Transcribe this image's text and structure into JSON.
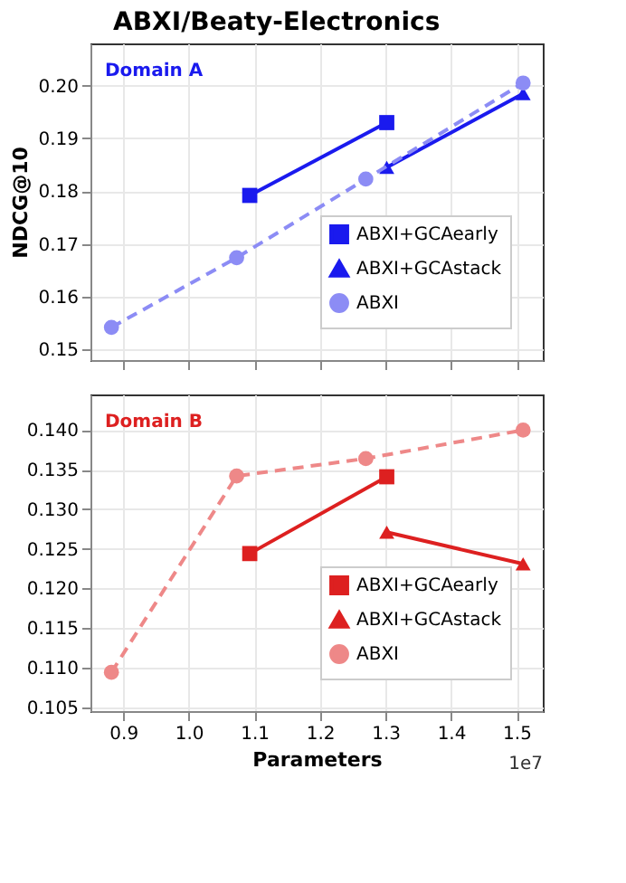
{
  "chart_data": [
    {
      "type": "line",
      "title": "ABXI/Beaty-Electronics",
      "ylabel": "NDCG@10",
      "annotations": [
        "Domain A"
      ],
      "xlim": [
        0.85,
        1.54
      ],
      "ylim": [
        0.148,
        0.208
      ],
      "yticks": [
        0.15,
        0.16,
        0.17,
        0.18,
        0.19,
        {
          "value": 0.2,
          "label": "0.20"
        }
      ],
      "xticks": [
        0.9,
        1,
        1.1,
        1.2,
        1.3,
        1.4,
        1.5
      ],
      "tick_labels": "y",
      "grid": true,
      "legend": "bottom right",
      "series": [
        {
          "name": "ABXI+GCAearly",
          "color": "#1a1aee",
          "marker": "square",
          "line_style": "solid",
          "x": [
            1.093,
            1.302
          ],
          "values": [
            0.1792,
            0.193
          ]
        },
        {
          "name": "ABXI+GCAstack",
          "color": "#1a1aee",
          "marker": "triangle",
          "line_style": "solid",
          "x": [
            1.302,
            1.51
          ],
          "values": [
            0.1845,
            0.1985
          ]
        },
        {
          "name": "ABXI",
          "color": "#8c8cf5",
          "marker": "circle",
          "line_style": "dashed",
          "x": [
            0.882,
            1.073,
            1.27,
            1.51
          ],
          "values": [
            0.1542,
            0.1674,
            0.1823,
            0.2005
          ]
        }
      ]
    },
    {
      "type": "line",
      "xlabel": "Parameters",
      "annotations": [
        "Domain B",
        "1e7"
      ],
      "xlim": [
        0.85,
        1.54
      ],
      "ylim": [
        0.1045,
        0.1445
      ],
      "yticks": [
        0.105,
        {
          "value": 0.11,
          "label": "0.110"
        },
        0.115,
        {
          "value": 0.12,
          "label": "0.120"
        },
        0.125,
        {
          "value": 0.13,
          "label": "0.130"
        },
        0.135,
        {
          "value": 0.14,
          "label": "0.140"
        }
      ],
      "xticks": [
        0.9,
        {
          "value": 1,
          "label": "1.0"
        },
        1.1,
        1.2,
        1.3,
        1.4,
        1.5
      ],
      "grid": true,
      "legend": "bottom right",
      "series": [
        {
          "name": "ABXI+GCAearly",
          "color": "#dd2020",
          "marker": "square",
          "line_style": "solid",
          "x": [
            1.093,
            1.302
          ],
          "values": [
            0.1244,
            0.1341
          ]
        },
        {
          "name": "ABXI+GCAstack",
          "color": "#dd2020",
          "marker": "triangle",
          "line_style": "solid",
          "x": [
            1.302,
            1.51
          ],
          "values": [
            0.1271,
            0.1231
          ]
        },
        {
          "name": "ABXI",
          "color": "#ee8888",
          "marker": "circle",
          "line_style": "dashed",
          "x": [
            0.882,
            1.073,
            1.27,
            1.51
          ],
          "values": [
            0.1094,
            0.1342,
            0.1364,
            0.14
          ]
        }
      ]
    }
  ]
}
